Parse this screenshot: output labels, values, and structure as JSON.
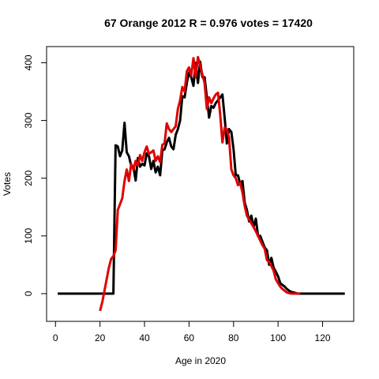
{
  "chart_data": {
    "type": "line",
    "title": "67 Orange 2012 R = 0.976 votes = 17420",
    "xlabel": "Age in 2020",
    "ylabel": "Votes",
    "xlim": [
      -4,
      134
    ],
    "ylim": [
      -48,
      428
    ],
    "xticks": [
      0,
      20,
      40,
      60,
      80,
      100,
      120
    ],
    "yticks": [
      0,
      100,
      200,
      300,
      400
    ],
    "grid": false,
    "legend": "none",
    "series": [
      {
        "color": "#000000",
        "x": [
          1,
          2,
          3,
          4,
          5,
          6,
          7,
          8,
          9,
          10,
          11,
          12,
          13,
          14,
          15,
          16,
          17,
          18,
          19,
          20,
          21,
          22,
          23,
          24,
          25,
          26,
          27,
          28,
          29,
          30,
          31,
          32,
          33,
          34,
          35,
          36,
          37,
          38,
          39,
          40,
          41,
          42,
          43,
          44,
          45,
          46,
          47,
          48,
          49,
          50,
          51,
          52,
          53,
          54,
          55,
          56,
          57,
          58,
          59,
          60,
          61,
          62,
          63,
          64,
          65,
          66,
          67,
          68,
          69,
          70,
          71,
          72,
          73,
          74,
          75,
          76,
          77,
          78,
          79,
          80,
          81,
          82,
          83,
          84,
          85,
          86,
          87,
          88,
          89,
          90,
          91,
          92,
          93,
          94,
          95,
          96,
          97,
          98,
          99,
          100,
          101,
          102,
          103,
          104,
          105,
          106,
          107,
          108,
          109,
          110,
          111,
          112,
          113,
          114,
          115,
          116,
          117,
          118,
          119,
          120,
          121,
          122,
          123,
          124,
          125,
          126,
          127,
          128,
          129,
          130
        ],
        "y": [
          0,
          0,
          0,
          0,
          0,
          0,
          0,
          0,
          0,
          0,
          0,
          0,
          0,
          0,
          0,
          0,
          0,
          0,
          0,
          0,
          0,
          0,
          0,
          0,
          0,
          0,
          257,
          255,
          238,
          248,
          296,
          245,
          238,
          222,
          220,
          196,
          235,
          220,
          225,
          222,
          243,
          238,
          216,
          230,
          210,
          220,
          205,
          248,
          250,
          262,
          270,
          255,
          250,
          275,
          285,
          300,
          342,
          340,
          365,
          383,
          375,
          360,
          400,
          365,
          402,
          375,
          375,
          340,
          305,
          325,
          322,
          330,
          335,
          340,
          345,
          305,
          260,
          285,
          280,
          250,
          205,
          205,
          190,
          195,
          158,
          145,
          125,
          135,
          115,
          130,
          100,
          100,
          90,
          80,
          75,
          50,
          62,
          45,
          38,
          30,
          18,
          15,
          12,
          8,
          5,
          3,
          2,
          1,
          0,
          0,
          0,
          0,
          0,
          0,
          0,
          0,
          0,
          0,
          0,
          0,
          0,
          0,
          0,
          0,
          0,
          0,
          0,
          0,
          0,
          0
        ]
      },
      {
        "color": "#e00000",
        "x": [
          20,
          21,
          22,
          23,
          24,
          25,
          26,
          27,
          28,
          29,
          30,
          31,
          32,
          33,
          34,
          35,
          36,
          37,
          38,
          39,
          40,
          41,
          42,
          43,
          44,
          45,
          46,
          47,
          48,
          49,
          50,
          51,
          52,
          53,
          54,
          55,
          56,
          57,
          58,
          59,
          60,
          61,
          62,
          63,
          64,
          65,
          66,
          67,
          68,
          69,
          70,
          71,
          72,
          73,
          74,
          75,
          76,
          77,
          78,
          79,
          80,
          81,
          82,
          83,
          84,
          85,
          86,
          87,
          88,
          89,
          90,
          91,
          92,
          93,
          94,
          95,
          96,
          97,
          98,
          99,
          100,
          101,
          102,
          103,
          104,
          105,
          106,
          107,
          108,
          109,
          110
        ],
        "y": [
          -30,
          -15,
          5,
          25,
          45,
          60,
          65,
          75,
          145,
          155,
          165,
          195,
          215,
          195,
          225,
          215,
          230,
          222,
          240,
          230,
          245,
          255,
          242,
          245,
          248,
          230,
          238,
          228,
          258,
          260,
          295,
          285,
          280,
          285,
          290,
          320,
          335,
          358,
          350,
          385,
          392,
          378,
          408,
          375,
          410,
          395,
          380,
          365,
          320,
          340,
          330,
          338,
          345,
          348,
          310,
          262,
          288,
          285,
          270,
          215,
          205,
          200,
          188,
          192,
          175,
          152,
          135,
          128,
          122,
          115,
          108,
          100,
          92,
          84,
          78,
          58,
          55,
          48,
          40,
          25,
          18,
          12,
          8,
          5,
          2,
          1,
          0,
          0,
          0,
          0,
          0
        ]
      }
    ]
  }
}
